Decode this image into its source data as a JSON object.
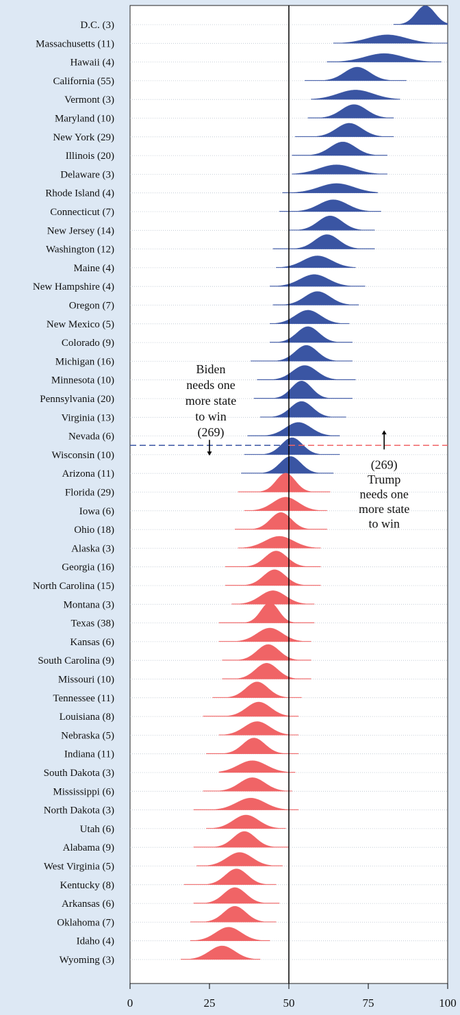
{
  "chart_data": {
    "type": "ridgeline",
    "xlim": [
      0,
      100
    ],
    "x_ticks": [
      0,
      25,
      50,
      75,
      100
    ],
    "threshold_x": 50,
    "colors": {
      "biden": "#3a55a3",
      "trump": "#f06466",
      "background": "#dde8f4"
    },
    "series": [
      {
        "label": "D.C. (3)",
        "party": "D",
        "mean": 93,
        "sd": 3.0,
        "min": 83,
        "max": 100
      },
      {
        "label": "Massachusetts (11)",
        "party": "D",
        "mean": 81,
        "sd": 6.0,
        "min": 64,
        "max": 100
      },
      {
        "label": "Hawaii (4)",
        "party": "D",
        "mean": 80,
        "sd": 6.0,
        "min": 62,
        "max": 98
      },
      {
        "label": "California (55)",
        "party": "D",
        "mean": 71.5,
        "sd": 4.0,
        "min": 55,
        "max": 87
      },
      {
        "label": "Vermont (3)",
        "party": "D",
        "mean": 71,
        "sd": 5.5,
        "min": 57,
        "max": 85
      },
      {
        "label": "Maryland (10)",
        "party": "D",
        "mean": 70.5,
        "sd": 4.0,
        "min": 56,
        "max": 83
      },
      {
        "label": "New York (29)",
        "party": "D",
        "mean": 69,
        "sd": 4.0,
        "min": 52,
        "max": 83
      },
      {
        "label": "Illinois (20)",
        "party": "D",
        "mean": 67,
        "sd": 4.0,
        "min": 51,
        "max": 81
      },
      {
        "label": "Delaware (3)",
        "party": "D",
        "mean": 65,
        "sd": 5.5,
        "min": 51,
        "max": 81
      },
      {
        "label": "Rhode Island (4)",
        "party": "D",
        "mean": 65,
        "sd": 5.5,
        "min": 48,
        "max": 78
      },
      {
        "label": "Connecticut (7)",
        "party": "D",
        "mean": 64,
        "sd": 4.5,
        "min": 47,
        "max": 79
      },
      {
        "label": "New Jersey (14)",
        "party": "D",
        "mean": 63,
        "sd": 3.8,
        "min": 50,
        "max": 77
      },
      {
        "label": "Washington (12)",
        "party": "D",
        "mean": 62,
        "sd": 3.8,
        "min": 45,
        "max": 77
      },
      {
        "label": "Maine (4)",
        "party": "D",
        "mean": 59,
        "sd": 4.5,
        "min": 46,
        "max": 71
      },
      {
        "label": "New Hampshire (4)",
        "party": "D",
        "mean": 58,
        "sd": 4.5,
        "min": 44,
        "max": 74
      },
      {
        "label": "Oregon (7)",
        "party": "D",
        "mean": 59,
        "sd": 4.0,
        "min": 45,
        "max": 72
      },
      {
        "label": "New Mexico (5)",
        "party": "D",
        "mean": 56,
        "sd": 4.0,
        "min": 44,
        "max": 69
      },
      {
        "label": "Colorado (9)",
        "party": "D",
        "mean": 56,
        "sd": 3.5,
        "min": 44,
        "max": 70
      },
      {
        "label": "Michigan (16)",
        "party": "D",
        "mean": 55.5,
        "sd": 3.5,
        "min": 38,
        "max": 70
      },
      {
        "label": "Minnesota (10)",
        "party": "D",
        "mean": 55,
        "sd": 3.8,
        "min": 40,
        "max": 71
      },
      {
        "label": "Pennsylvania (20)",
        "party": "D",
        "mean": 54,
        "sd": 3.2,
        "min": 39,
        "max": 70
      },
      {
        "label": "Virginia (13)",
        "party": "D",
        "mean": 54,
        "sd": 3.5,
        "min": 41,
        "max": 68
      },
      {
        "label": "Nevada (6)",
        "party": "D",
        "mean": 53,
        "sd": 4.0,
        "min": 37,
        "max": 66
      },
      {
        "label": "Wisconsin (10)",
        "party": "D",
        "mean": 51,
        "sd": 3.3,
        "min": 36,
        "max": 66
      },
      {
        "label": "Arizona (11)",
        "party": "D",
        "mean": 50.5,
        "sd": 3.3,
        "min": 35,
        "max": 64
      },
      {
        "label": "Florida (29)",
        "party": "R",
        "mean": 49,
        "sd": 3.0,
        "min": 34,
        "max": 63
      },
      {
        "label": "Iowa (6)",
        "party": "R",
        "mean": 49,
        "sd": 4.0,
        "min": 36,
        "max": 62
      },
      {
        "label": "Ohio (18)",
        "party": "R",
        "mean": 47.5,
        "sd": 3.3,
        "min": 33,
        "max": 62
      },
      {
        "label": "Alaska (3)",
        "party": "R",
        "mean": 47,
        "sd": 4.5,
        "min": 34,
        "max": 60
      },
      {
        "label": "Georgia (16)",
        "party": "R",
        "mean": 46,
        "sd": 3.5,
        "min": 30,
        "max": 60
      },
      {
        "label": "North Carolina (15)",
        "party": "R",
        "mean": 45.5,
        "sd": 3.5,
        "min": 30,
        "max": 60
      },
      {
        "label": "Montana (3)",
        "party": "R",
        "mean": 45,
        "sd": 4.0,
        "min": 32,
        "max": 58
      },
      {
        "label": "Texas (38)",
        "party": "R",
        "mean": 44,
        "sd": 2.8,
        "min": 28,
        "max": 58
      },
      {
        "label": "Kansas (6)",
        "party": "R",
        "mean": 44,
        "sd": 4.0,
        "min": 28,
        "max": 57
      },
      {
        "label": "South Carolina (9)",
        "party": "R",
        "mean": 43.5,
        "sd": 3.5,
        "min": 29,
        "max": 57
      },
      {
        "label": "Missouri (10)",
        "party": "R",
        "mean": 43,
        "sd": 3.5,
        "min": 29,
        "max": 57
      },
      {
        "label": "Tennessee (11)",
        "party": "R",
        "mean": 40,
        "sd": 3.5,
        "min": 26,
        "max": 54
      },
      {
        "label": "Louisiana (8)",
        "party": "R",
        "mean": 40.5,
        "sd": 3.8,
        "min": 23,
        "max": 53
      },
      {
        "label": "Nebraska (5)",
        "party": "R",
        "mean": 40,
        "sd": 4.0,
        "min": 28,
        "max": 53
      },
      {
        "label": "Indiana (11)",
        "party": "R",
        "mean": 39,
        "sd": 3.5,
        "min": 24,
        "max": 53
      },
      {
        "label": "South Dakota (3)",
        "party": "R",
        "mean": 38.5,
        "sd": 4.5,
        "min": 28,
        "max": 52
      },
      {
        "label": "Mississippi (6)",
        "party": "R",
        "mean": 38.5,
        "sd": 4.0,
        "min": 23,
        "max": 51
      },
      {
        "label": "North Dakota (3)",
        "party": "R",
        "mean": 38,
        "sd": 4.5,
        "min": 20,
        "max": 53
      },
      {
        "label": "Utah (6)",
        "party": "R",
        "mean": 36.5,
        "sd": 4.0,
        "min": 24,
        "max": 49
      },
      {
        "label": "Alabama (9)",
        "party": "R",
        "mean": 36,
        "sd": 3.5,
        "min": 20,
        "max": 50
      },
      {
        "label": "West Virginia (5)",
        "party": "R",
        "mean": 34.5,
        "sd": 4.0,
        "min": 21,
        "max": 48
      },
      {
        "label": "Kentucky (8)",
        "party": "R",
        "mean": 33.5,
        "sd": 3.5,
        "min": 17,
        "max": 46
      },
      {
        "label": "Arkansas (6)",
        "party": "R",
        "mean": 33,
        "sd": 3.5,
        "min": 20,
        "max": 47
      },
      {
        "label": "Oklahoma (7)",
        "party": "R",
        "mean": 33,
        "sd": 3.5,
        "min": 19,
        "max": 46
      },
      {
        "label": "Idaho (4)",
        "party": "R",
        "mean": 31,
        "sd": 4.0,
        "min": 19,
        "max": 44
      },
      {
        "label": "Wyoming (3)",
        "party": "R",
        "mean": 29,
        "sd": 4.0,
        "min": 16,
        "max": 41
      }
    ],
    "annotations": {
      "biden": {
        "lines": [
          "Biden",
          "needs one",
          "more state",
          "to win",
          "(269)"
        ],
        "arrow_x": 25
      },
      "trump": {
        "lines": [
          "(269)",
          "Trump",
          "needs one",
          "more state",
          "to win"
        ],
        "arrow_x": 80
      }
    }
  }
}
